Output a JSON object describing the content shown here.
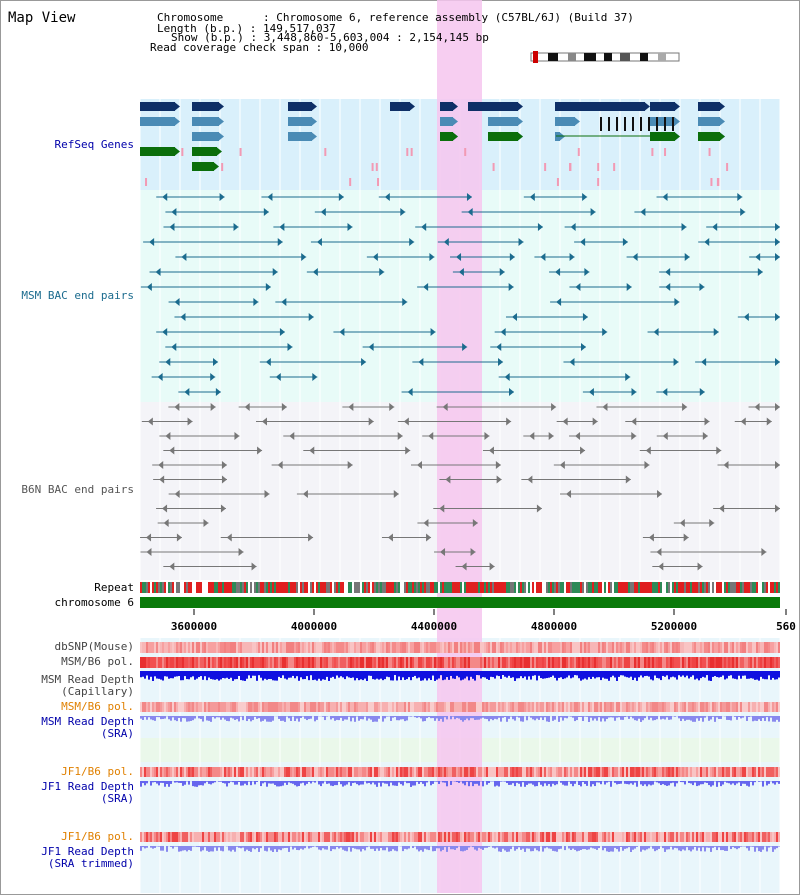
{
  "map_title": "Map View",
  "header": {
    "chromosome_line": "Chromosome      : Chromosome 6, reference assembly (C57BL/6J) (Build 37)",
    "length_line": "Length (b.p.) : 149,517,037",
    "show_line": "Show (b.p.) : 3,448,860-5,603,004 : 2,154,145 bp",
    "coverage_line": "Read coverage check span : 10,000"
  },
  "tracks": {
    "refseq": "RefSeq Genes",
    "msm_bac": "MSM BAC end pairs",
    "b6n_bac": "B6N BAC end pairs",
    "repeat": "Repeat",
    "chromosome": "chromosome 6",
    "dbsnp": "dbSNP(Mouse)",
    "msm_b6_pol": "MSM/B6 pol.",
    "msm_depth_cap_1": "MSM Read Depth",
    "msm_depth_cap_2": "(Capillary)",
    "msm_b6_pol2": "MSM/B6 pol.",
    "msm_depth_sra_1": "MSM Read Depth",
    "msm_depth_sra_2": "(SRA)",
    "jf1_b6_pol": "JF1/B6 pol.",
    "jf1_depth_sra_1": "JF1 Read Depth",
    "jf1_depth_sra_2": "(SRA)",
    "jf1_b6_pol2": "JF1/B6 pol.",
    "jf1_depth_trim_1": "JF1 Read Depth",
    "jf1_depth_trim_2": "(SRA trimmed)"
  },
  "axis": {
    "ticks": [
      "3600000",
      "4000000",
      "4400000",
      "4800000",
      "5200000",
      "560"
    ]
  },
  "colors": {
    "refseq_bg": "#d9f0fb",
    "msm_bg": "#e8fbf8",
    "b6n_bg": "#f4f4f8",
    "highlight": "#f6c6ee",
    "gene_dark": "#0e2f66",
    "gene_mid": "#4a8bb5",
    "gene_green": "#0b6e0b",
    "msm_line": "#1b6b8e",
    "b6n_line": "#777777",
    "chrom_green": "#0a7a0a",
    "label_blue": "#0000aa",
    "label_orange": "#e08000"
  }
}
